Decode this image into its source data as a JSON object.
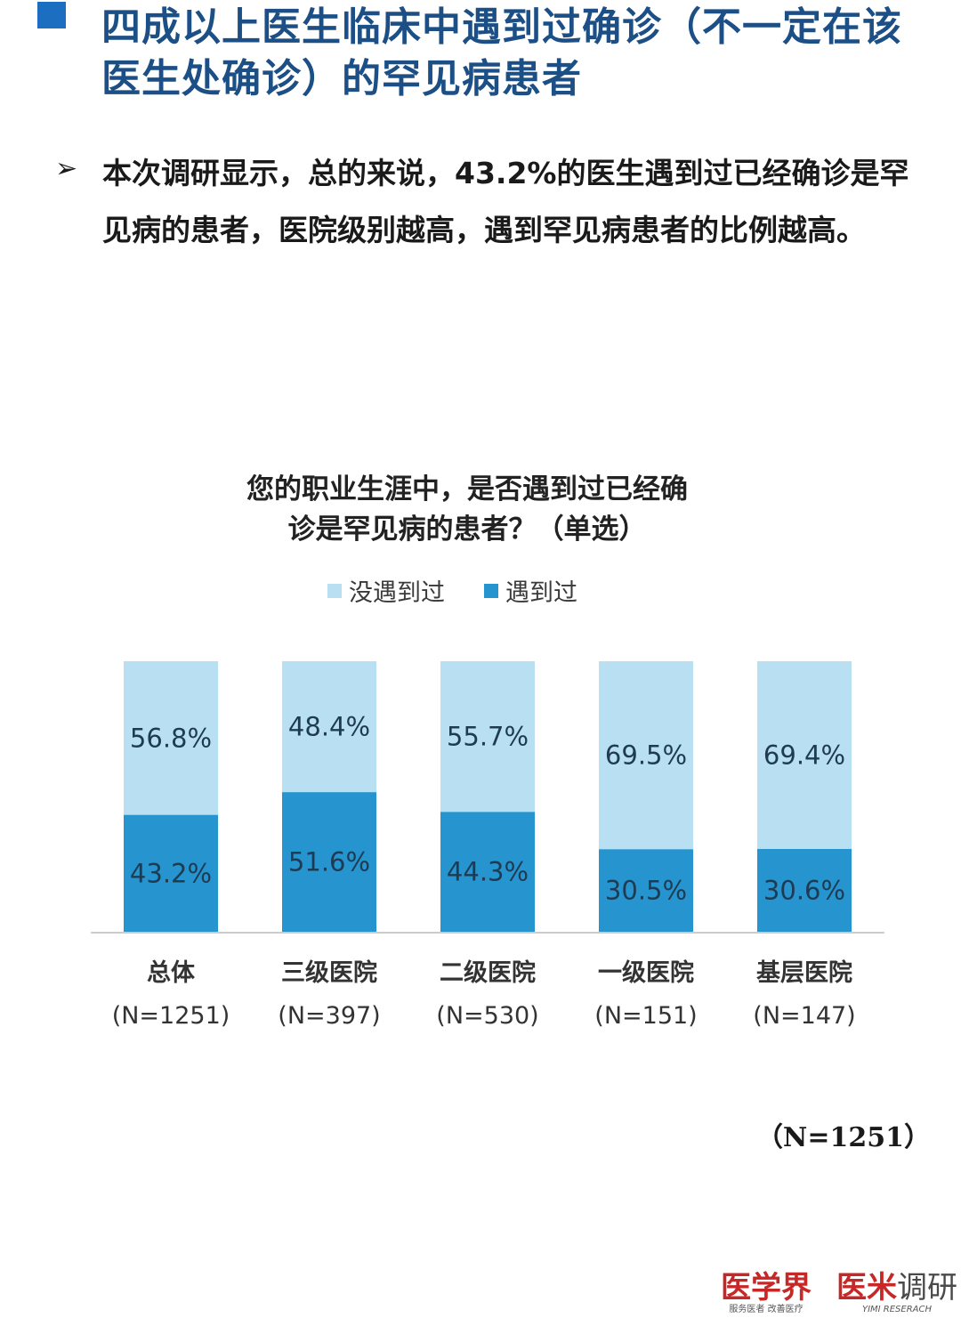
{
  "header": {
    "title": "四成以上医生临床中遇到过确诊（不一定在该医生处确诊）的罕见病患者"
  },
  "bullet": {
    "arrow": "➢",
    "text": "本次调研显示，总的来说，43.2%的医生遇到过已经确诊是罕见病的患者，医院级别越高，遇到罕见病患者的比例越高。"
  },
  "colors": {
    "title": "#1b4f86",
    "title_square": "#1c6fc0",
    "not_encountered": "#b9dff2",
    "encountered": "#2594cf",
    "axis": "#cccccc"
  },
  "chart_data": {
    "type": "bar",
    "stacked": true,
    "percent": true,
    "title_lines": [
      "您的职业生涯中，是否遇到过已经确",
      "诊是罕见病的患者？（单选）"
    ],
    "legend_position": "top",
    "categories": [
      {
        "name": "总体",
        "n": "(N=1251)"
      },
      {
        "name": "三级医院",
        "n": "(N=397)"
      },
      {
        "name": "二级医院",
        "n": "(N=530)"
      },
      {
        "name": "一级医院",
        "n": "(N=151)"
      },
      {
        "name": "基层医院",
        "n": "(N=147)"
      }
    ],
    "series": [
      {
        "name": "遇到过",
        "values": [
          43.2,
          51.6,
          44.3,
          30.5,
          30.6
        ],
        "labels": [
          "43.2%",
          "51.6%",
          "44.3%",
          "30.5%",
          "30.6%"
        ]
      },
      {
        "name": "没遇到过",
        "values": [
          56.8,
          48.4,
          55.7,
          69.5,
          69.4
        ],
        "labels": [
          "56.8%",
          "48.4%",
          "55.7%",
          "69.5%",
          "69.4%"
        ]
      }
    ],
    "legend_order": [
      "没遇到过",
      "遇到过"
    ],
    "ylim": [
      0,
      100
    ],
    "grid": false
  },
  "footer": {
    "sample_note": "（N=1251）",
    "logo1_main": "医学界",
    "logo1_sub": "服务医者 改善医疗",
    "logo2_main_red": "医米",
    "logo2_main_gray": "调研",
    "logo2_sub": "YIMI RESERACH"
  }
}
